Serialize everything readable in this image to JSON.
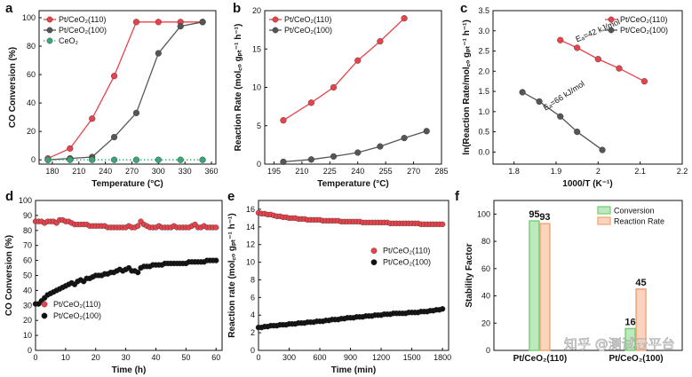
{
  "watermark": "知乎 @测试云平台",
  "chart_data": [
    {
      "panel": "a",
      "type": "line",
      "xlabel": "Temperature (°C)",
      "ylabel": "CO Conversion (%)",
      "xlim": [
        165,
        365
      ],
      "ylim": [
        -3,
        105
      ],
      "xticks": [
        180,
        210,
        240,
        270,
        300,
        330,
        360
      ],
      "yticks": [
        0,
        20,
        40,
        60,
        80,
        100
      ],
      "legend_position": "top-left",
      "series": [
        {
          "name": "Pt/CeO₂(110)",
          "color": "#e8434b",
          "marker": "circle-filled",
          "line": "solid",
          "x": [
            175,
            200,
            225,
            250,
            275,
            300,
            325,
            350
          ],
          "y": [
            1,
            8,
            29,
            59,
            97,
            97,
            97,
            97
          ]
        },
        {
          "name": "Pt/CeO₂(100)",
          "color": "#555555",
          "marker": "circle-filled",
          "line": "solid",
          "x": [
            175,
            200,
            225,
            250,
            275,
            300,
            325,
            350
          ],
          "y": [
            0,
            1,
            2,
            16,
            33,
            75,
            94,
            97
          ]
        },
        {
          "name": "CeO₂",
          "color": "#3aa676",
          "marker": "circle-filled",
          "line": "dotted",
          "x": [
            175,
            200,
            225,
            250,
            275,
            300,
            325,
            350
          ],
          "y": [
            0,
            0,
            0,
            0,
            0,
            0,
            0,
            0
          ]
        }
      ]
    },
    {
      "panel": "b",
      "type": "line",
      "xlabel": "Temperature (°C)",
      "ylabel": "Reaction Rate (mol꜀ₒ gₚₜ⁻¹ h⁻¹)",
      "xlim": [
        190,
        285
      ],
      "ylim": [
        0,
        20
      ],
      "xticks": [
        195,
        210,
        225,
        240,
        255,
        270,
        285
      ],
      "yticks": [
        0,
        5,
        10,
        15,
        20
      ],
      "legend_position": "top-left",
      "series": [
        {
          "name": "Pt/CeO₂(110)",
          "color": "#e8434b",
          "marker": "circle-filled",
          "line": "solid",
          "x": [
            200,
            215,
            227,
            240,
            252,
            265
          ],
          "y": [
            5.7,
            8.0,
            10.0,
            13.5,
            16.0,
            19.0
          ]
        },
        {
          "name": "Pt/CeO₂(100)",
          "color": "#555555",
          "marker": "circle-filled",
          "line": "solid",
          "x": [
            200,
            215,
            227,
            240,
            252,
            265,
            277
          ],
          "y": [
            0.3,
            0.6,
            1.0,
            1.5,
            2.3,
            3.4,
            4.3
          ]
        }
      ]
    },
    {
      "panel": "c",
      "type": "line",
      "xlabel": "1000/T (K⁻¹)",
      "ylabel": "ln(Reaction Rate/mol꜀ₒ gₚₜ⁻¹ h⁻¹)",
      "xlim": [
        1.75,
        2.2
      ],
      "ylim": [
        -0.3,
        3.5
      ],
      "xticks": [
        1.8,
        1.9,
        2.0,
        2.1,
        2.2
      ],
      "yticks": [
        0.0,
        0.5,
        1.0,
        1.5,
        2.0,
        2.5,
        3.0,
        3.5
      ],
      "legend_position": "top-right",
      "annotations": [
        "Eₐ=42 kJ/mol",
        "Eₐ=66 kJ/mol"
      ],
      "series": [
        {
          "name": "Pt/CeO₂(110)",
          "color": "#e8434b",
          "marker": "circle-filled",
          "line": "solid",
          "x": [
            1.91,
            1.95,
            2.0,
            2.05,
            2.11
          ],
          "y": [
            2.77,
            2.58,
            2.3,
            2.07,
            1.75
          ]
        },
        {
          "name": "Pt/CeO₂(100)",
          "color": "#555555",
          "marker": "circle-filled",
          "line": "solid",
          "x": [
            1.82,
            1.86,
            1.91,
            1.95,
            2.01
          ],
          "y": [
            1.48,
            1.25,
            0.88,
            0.5,
            0.05
          ]
        }
      ]
    },
    {
      "panel": "d",
      "type": "scatter",
      "xlabel": "Time (h)",
      "ylabel": "CO Conversion (%)",
      "xlim": [
        0,
        62
      ],
      "ylim": [
        0,
        100
      ],
      "xticks": [
        0,
        10,
        20,
        30,
        40,
        50,
        60
      ],
      "yticks": [
        0,
        10,
        20,
        30,
        40,
        50,
        60,
        70,
        80,
        90,
        100
      ],
      "legend_position": "bottom-left",
      "series": [
        {
          "name": "Pt/CeO₂(110)",
          "color": "#e8434b",
          "marker": "circle-filled",
          "x": [
            0,
            1,
            2,
            3,
            4,
            5,
            6,
            7,
            8,
            9,
            10,
            11,
            12,
            13,
            14,
            15,
            16,
            17,
            18,
            19,
            20,
            21,
            22,
            23,
            24,
            25,
            26,
            27,
            28,
            29,
            30,
            31,
            32,
            33,
            34,
            35,
            36,
            37,
            38,
            39,
            40,
            41,
            42,
            43,
            44,
            45,
            46,
            47,
            48,
            49,
            50,
            51,
            52,
            53,
            54,
            55,
            56,
            57,
            58,
            59,
            60
          ],
          "y": [
            86,
            86,
            86,
            85,
            86,
            86,
            86,
            85,
            87,
            87,
            86,
            86,
            85,
            84,
            84,
            84,
            84,
            84,
            83,
            83,
            83,
            83,
            83,
            83,
            82,
            82,
            82,
            82,
            82,
            82,
            82,
            83,
            82,
            82,
            83,
            86,
            84,
            83,
            82,
            82,
            82,
            83,
            82,
            82,
            82,
            82,
            83,
            82,
            82,
            82,
            82,
            82,
            83,
            84,
            82,
            82,
            83,
            82,
            82,
            82,
            82
          ]
        },
        {
          "name": "Pt/CeO₂(100)",
          "color": "#111111",
          "marker": "circle-filled",
          "x": [
            0,
            1,
            2,
            3,
            4,
            5,
            6,
            7,
            8,
            9,
            10,
            11,
            12,
            13,
            14,
            15,
            16,
            17,
            18,
            19,
            20,
            21,
            22,
            23,
            24,
            25,
            26,
            27,
            28,
            29,
            30,
            31,
            32,
            33,
            34,
            35,
            36,
            37,
            38,
            39,
            40,
            41,
            42,
            43,
            44,
            45,
            46,
            47,
            48,
            49,
            50,
            51,
            52,
            53,
            54,
            55,
            56,
            57,
            58,
            59,
            60
          ],
          "y": [
            31,
            31,
            33,
            35,
            37,
            38,
            39,
            40,
            41,
            42,
            43,
            44,
            45,
            44,
            46,
            47,
            46,
            48,
            48,
            49,
            50,
            50,
            50,
            51,
            51,
            52,
            52,
            53,
            54,
            53,
            54,
            55,
            53,
            53,
            52,
            55,
            56,
            56,
            56,
            57,
            57,
            57,
            57,
            58,
            58,
            58,
            58,
            58,
            58,
            58,
            58,
            59,
            59,
            59,
            59,
            59,
            59,
            60,
            60,
            60,
            60
          ]
        }
      ]
    },
    {
      "panel": "e",
      "type": "scatter",
      "xlabel": "Time (min)",
      "ylabel": "Reaction rate (mol꜀ₒ gₚₜ⁻¹ h⁻¹)",
      "xlim": [
        0,
        1860
      ],
      "ylim": [
        0,
        17
      ],
      "xticks": [
        0,
        300,
        600,
        900,
        1200,
        1500,
        1800
      ],
      "yticks": [
        0,
        2,
        4,
        6,
        8,
        10,
        12,
        14,
        16
      ],
      "legend_position": "center-right",
      "series": [
        {
          "name": "Pt/CeO₂(110)",
          "color": "#e8434b",
          "marker": "circle-filled",
          "x": [
            0,
            30,
            60,
            90,
            120,
            150,
            180,
            210,
            240,
            270,
            300,
            330,
            360,
            390,
            420,
            450,
            480,
            510,
            540,
            570,
            600,
            630,
            660,
            690,
            720,
            750,
            780,
            810,
            840,
            870,
            900,
            930,
            960,
            990,
            1020,
            1050,
            1080,
            1110,
            1140,
            1170,
            1200,
            1230,
            1260,
            1290,
            1320,
            1350,
            1380,
            1410,
            1440,
            1470,
            1500,
            1530,
            1560,
            1590,
            1620,
            1650,
            1680,
            1710,
            1740,
            1770,
            1800
          ],
          "y": [
            15.6,
            15.5,
            15.5,
            15.4,
            15.4,
            15.3,
            15.2,
            15.2,
            15.1,
            15.1,
            15.0,
            15.0,
            15.0,
            14.9,
            14.9,
            14.9,
            14.8,
            14.8,
            14.8,
            14.8,
            14.8,
            14.7,
            14.7,
            14.7,
            14.7,
            14.7,
            14.7,
            14.6,
            14.6,
            14.6,
            14.6,
            14.6,
            14.6,
            14.6,
            14.5,
            14.5,
            14.5,
            14.5,
            14.5,
            14.5,
            14.5,
            14.5,
            14.5,
            14.4,
            14.4,
            14.4,
            14.4,
            14.4,
            14.4,
            14.4,
            14.4,
            14.4,
            14.4,
            14.3,
            14.3,
            14.3,
            14.3,
            14.3,
            14.3,
            14.3,
            14.3
          ]
        },
        {
          "name": "Pt/CeO₂(100)",
          "color": "#111111",
          "marker": "circle-filled",
          "x": [
            0,
            30,
            60,
            90,
            120,
            150,
            180,
            210,
            240,
            270,
            300,
            330,
            360,
            390,
            420,
            450,
            480,
            510,
            540,
            570,
            600,
            630,
            660,
            690,
            720,
            750,
            780,
            810,
            840,
            870,
            900,
            930,
            960,
            990,
            1020,
            1050,
            1080,
            1110,
            1140,
            1170,
            1200,
            1230,
            1260,
            1290,
            1320,
            1350,
            1380,
            1410,
            1440,
            1470,
            1500,
            1530,
            1560,
            1590,
            1620,
            1650,
            1680,
            1710,
            1740,
            1770,
            1800
          ],
          "y": [
            2.6,
            2.6,
            2.7,
            2.7,
            2.8,
            2.8,
            2.8,
            2.9,
            2.9,
            2.9,
            3.0,
            3.0,
            3.0,
            3.1,
            3.1,
            3.1,
            3.2,
            3.2,
            3.2,
            3.3,
            3.3,
            3.3,
            3.4,
            3.4,
            3.5,
            3.5,
            3.5,
            3.6,
            3.6,
            3.7,
            3.7,
            3.7,
            3.8,
            3.8,
            3.8,
            3.9,
            3.9,
            3.9,
            4.0,
            4.0,
            4.0,
            4.1,
            4.1,
            4.1,
            4.2,
            4.2,
            4.2,
            4.2,
            4.2,
            4.3,
            4.3,
            4.3,
            4.3,
            4.4,
            4.4,
            4.4,
            4.5,
            4.5,
            4.6,
            4.6,
            4.7
          ]
        }
      ]
    },
    {
      "panel": "f",
      "type": "bar",
      "ylabel": "Stability Factor",
      "ylim": [
        0,
        110
      ],
      "yticks": [
        0,
        20,
        40,
        60,
        80,
        100
      ],
      "categories": [
        "Pt/CeO₂(110)",
        "Pt/CeO₂(100)"
      ],
      "legend_position": "top-right",
      "series": [
        {
          "name": "Conversion",
          "color": "#6fcf6f",
          "values": [
            95,
            16
          ]
        },
        {
          "name": "Reaction Rate",
          "color": "#f3a070",
          "values": [
            93,
            45
          ]
        }
      ]
    }
  ]
}
